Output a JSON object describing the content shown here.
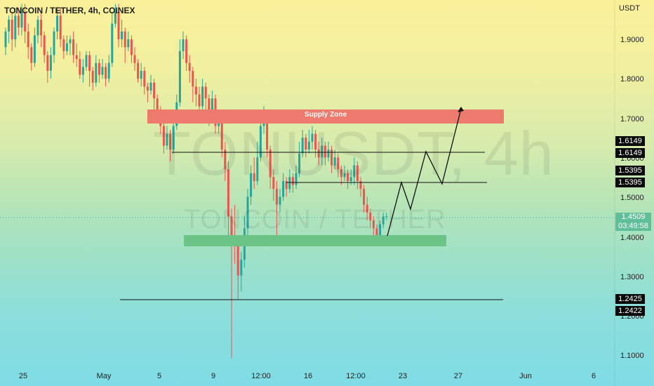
{
  "header": {
    "title": "TONCOIN / TETHER, 4h, COINEX"
  },
  "watermark": {
    "primary": "TONUSDT, 4h",
    "secondary": "TONCOIN / TETHER"
  },
  "colors": {
    "up": "#26a69a",
    "down": "#ef5350",
    "supply_zone": "#ec7b6e",
    "demand_zone": "#6cc486",
    "last_price_bg": "#5fbf98",
    "price_tag_bg": "#0a0a0a"
  },
  "price_tags": [
    {
      "label": "1.6149",
      "value": 1.6149
    },
    {
      "label": "1.6149",
      "value": 1.6149
    },
    {
      "label": "1.5395",
      "value": 1.5395
    },
    {
      "label": "1.5395",
      "value": 1.5395
    },
    {
      "label": "1.2425",
      "value": 1.2425
    },
    {
      "label": "1.2422",
      "value": 1.2422
    }
  ],
  "last_price": {
    "value": "1.4509",
    "countdown": "03:49:58"
  },
  "chart_data": {
    "type": "candlestick",
    "title": "TONCOIN / TETHER, 4h, COINEX",
    "y_unit": "USDT",
    "ylim": [
      1.08,
      2.0
    ],
    "y_ticks": [
      "1.9000",
      "1.8000",
      "1.7000",
      "1.6000",
      "1.5000",
      "1.4000",
      "1.3000",
      "1.2000",
      "1.1000"
    ],
    "x_ticks": [
      "25",
      "May",
      "5",
      "9",
      "12:00",
      "16",
      "12:00",
      "23",
      "27",
      "Jun",
      "6"
    ],
    "grid": false,
    "annotations": {
      "supply_zone": {
        "label": "Supply Zone",
        "low": 1.69,
        "high": 1.725
      },
      "demand_zone": {
        "low": 1.38,
        "high": 1.405
      },
      "levels": [
        1.6149,
        1.5395,
        1.2425
      ],
      "projected_path": [
        1.4,
        1.54,
        1.42,
        1.61,
        1.54,
        1.73
      ]
    },
    "candles": [
      [
        1.88,
        1.92,
        1.93,
        1.86
      ],
      [
        1.92,
        1.95,
        1.96,
        1.89
      ],
      [
        1.95,
        1.9,
        1.97,
        1.87
      ],
      [
        1.9,
        1.96,
        1.98,
        1.88
      ],
      [
        1.96,
        1.93,
        1.98,
        1.91
      ],
      [
        1.93,
        1.97,
        1.99,
        1.91
      ],
      [
        1.97,
        1.92,
        1.99,
        1.89
      ],
      [
        1.92,
        1.88,
        1.94,
        1.85
      ],
      [
        1.88,
        1.84,
        1.89,
        1.82
      ],
      [
        1.84,
        1.91,
        1.93,
        1.83
      ],
      [
        1.91,
        1.95,
        1.96,
        1.89
      ],
      [
        1.95,
        1.91,
        1.97,
        1.88
      ],
      [
        1.91,
        1.86,
        1.92,
        1.84
      ],
      [
        1.86,
        1.82,
        1.87,
        1.79
      ],
      [
        1.82,
        1.86,
        1.88,
        1.8
      ],
      [
        1.86,
        1.92,
        1.93,
        1.84
      ],
      [
        1.92,
        1.96,
        1.98,
        1.9
      ],
      [
        1.96,
        1.9,
        1.98,
        1.88
      ],
      [
        1.9,
        1.87,
        1.91,
        1.85
      ],
      [
        1.87,
        1.89,
        1.91,
        1.86
      ],
      [
        1.89,
        1.9,
        1.91,
        1.86
      ],
      [
        1.9,
        1.86,
        1.92,
        1.84
      ],
      [
        1.86,
        1.85,
        1.89,
        1.83
      ],
      [
        1.85,
        1.81,
        1.87,
        1.8
      ],
      [
        1.81,
        1.83,
        1.85,
        1.79
      ],
      [
        1.83,
        1.86,
        1.87,
        1.82
      ],
      [
        1.86,
        1.82,
        1.87,
        1.78
      ],
      [
        1.82,
        1.79,
        1.83,
        1.77
      ],
      [
        1.79,
        1.84,
        1.86,
        1.78
      ],
      [
        1.84,
        1.81,
        1.85,
        1.79
      ],
      [
        1.81,
        1.83,
        1.85,
        1.8
      ],
      [
        1.83,
        1.8,
        1.84,
        1.78
      ],
      [
        1.8,
        1.84,
        1.86,
        1.79
      ],
      [
        1.84,
        1.94,
        1.97,
        1.83
      ],
      [
        1.94,
        1.97,
        1.99,
        1.93
      ],
      [
        1.97,
        1.9,
        1.99,
        1.88
      ],
      [
        1.9,
        1.92,
        1.95,
        1.88
      ],
      [
        1.92,
        1.88,
        1.93,
        1.84
      ],
      [
        1.88,
        1.9,
        1.92,
        1.87
      ],
      [
        1.9,
        1.86,
        1.91,
        1.84
      ],
      [
        1.86,
        1.84,
        1.88,
        1.82
      ],
      [
        1.84,
        1.8,
        1.85,
        1.79
      ],
      [
        1.8,
        1.82,
        1.84,
        1.78
      ],
      [
        1.82,
        1.78,
        1.83,
        1.76
      ],
      [
        1.78,
        1.77,
        1.79,
        1.74
      ],
      [
        1.77,
        1.79,
        1.81,
        1.76
      ],
      [
        1.79,
        1.75,
        1.8,
        1.72
      ],
      [
        1.75,
        1.72,
        1.76,
        1.7
      ],
      [
        1.72,
        1.68,
        1.73,
        1.66
      ],
      [
        1.68,
        1.63,
        1.69,
        1.61
      ],
      [
        1.63,
        1.66,
        1.68,
        1.62
      ],
      [
        1.66,
        1.62,
        1.67,
        1.59
      ],
      [
        1.62,
        1.68,
        1.7,
        1.61
      ],
      [
        1.68,
        1.74,
        1.76,
        1.67
      ],
      [
        1.74,
        1.87,
        1.9,
        1.73
      ],
      [
        1.87,
        1.9,
        1.92,
        1.85
      ],
      [
        1.9,
        1.84,
        1.91,
        1.82
      ],
      [
        1.84,
        1.82,
        1.86,
        1.79
      ],
      [
        1.82,
        1.78,
        1.83,
        1.74
      ],
      [
        1.78,
        1.76,
        1.8,
        1.73
      ],
      [
        1.76,
        1.73,
        1.78,
        1.7
      ],
      [
        1.73,
        1.78,
        1.8,
        1.72
      ],
      [
        1.78,
        1.75,
        1.79,
        1.72
      ],
      [
        1.75,
        1.72,
        1.76,
        1.68
      ],
      [
        1.72,
        1.75,
        1.77,
        1.7
      ],
      [
        1.75,
        1.68,
        1.76,
        1.66
      ],
      [
        1.68,
        1.7,
        1.72,
        1.66
      ],
      [
        1.7,
        1.62,
        1.71,
        1.6
      ],
      [
        1.62,
        1.57,
        1.64,
        1.54
      ],
      [
        1.57,
        1.45,
        1.59,
        1.4
      ],
      [
        1.45,
        1.4,
        1.47,
        1.09
      ],
      [
        1.4,
        1.38,
        1.48,
        1.33
      ],
      [
        1.38,
        1.3,
        1.4,
        1.24
      ],
      [
        1.3,
        1.34,
        1.36,
        1.26
      ],
      [
        1.34,
        1.42,
        1.45,
        1.32
      ],
      [
        1.42,
        1.5,
        1.52,
        1.4
      ],
      [
        1.5,
        1.56,
        1.58,
        1.48
      ],
      [
        1.56,
        1.54,
        1.6,
        1.52
      ],
      [
        1.54,
        1.6,
        1.64,
        1.53
      ],
      [
        1.6,
        1.68,
        1.71,
        1.59
      ],
      [
        1.68,
        1.7,
        1.73,
        1.66
      ],
      [
        1.7,
        1.62,
        1.71,
        1.6
      ],
      [
        1.62,
        1.55,
        1.63,
        1.52
      ],
      [
        1.55,
        1.52,
        1.57,
        1.49
      ],
      [
        1.52,
        1.48,
        1.54,
        1.38
      ],
      [
        1.48,
        1.5,
        1.52,
        1.46
      ],
      [
        1.5,
        1.54,
        1.56,
        1.49
      ],
      [
        1.54,
        1.52,
        1.55,
        1.5
      ],
      [
        1.52,
        1.55,
        1.57,
        1.51
      ],
      [
        1.55,
        1.53,
        1.56,
        1.51
      ],
      [
        1.53,
        1.56,
        1.58,
        1.52
      ],
      [
        1.56,
        1.61,
        1.64,
        1.55
      ],
      [
        1.61,
        1.65,
        1.67,
        1.6
      ],
      [
        1.65,
        1.62,
        1.66,
        1.6
      ],
      [
        1.62,
        1.64,
        1.67,
        1.61
      ],
      [
        1.64,
        1.66,
        1.68,
        1.62
      ],
      [
        1.66,
        1.62,
        1.67,
        1.6
      ],
      [
        1.62,
        1.6,
        1.64,
        1.58
      ],
      [
        1.6,
        1.63,
        1.65,
        1.58
      ],
      [
        1.63,
        1.6,
        1.64,
        1.58
      ],
      [
        1.6,
        1.62,
        1.64,
        1.59
      ],
      [
        1.62,
        1.58,
        1.63,
        1.56
      ],
      [
        1.58,
        1.6,
        1.62,
        1.57
      ],
      [
        1.6,
        1.57,
        1.61,
        1.55
      ],
      [
        1.57,
        1.55,
        1.58,
        1.53
      ],
      [
        1.55,
        1.56,
        1.58,
        1.54
      ],
      [
        1.56,
        1.54,
        1.57,
        1.52
      ],
      [
        1.54,
        1.55,
        1.57,
        1.53
      ],
      [
        1.55,
        1.58,
        1.6,
        1.53
      ],
      [
        1.58,
        1.54,
        1.59,
        1.52
      ],
      [
        1.54,
        1.52,
        1.55,
        1.5
      ],
      [
        1.52,
        1.48,
        1.53,
        1.46
      ],
      [
        1.48,
        1.46,
        1.5,
        1.44
      ],
      [
        1.46,
        1.44,
        1.47,
        1.42
      ],
      [
        1.44,
        1.42,
        1.45,
        1.4
      ],
      [
        1.42,
        1.4,
        1.43,
        1.39
      ],
      [
        1.4,
        1.43,
        1.44,
        1.39
      ],
      [
        1.43,
        1.45,
        1.46,
        1.42
      ],
      [
        1.45,
        1.4509,
        1.46,
        1.44
      ]
    ]
  }
}
